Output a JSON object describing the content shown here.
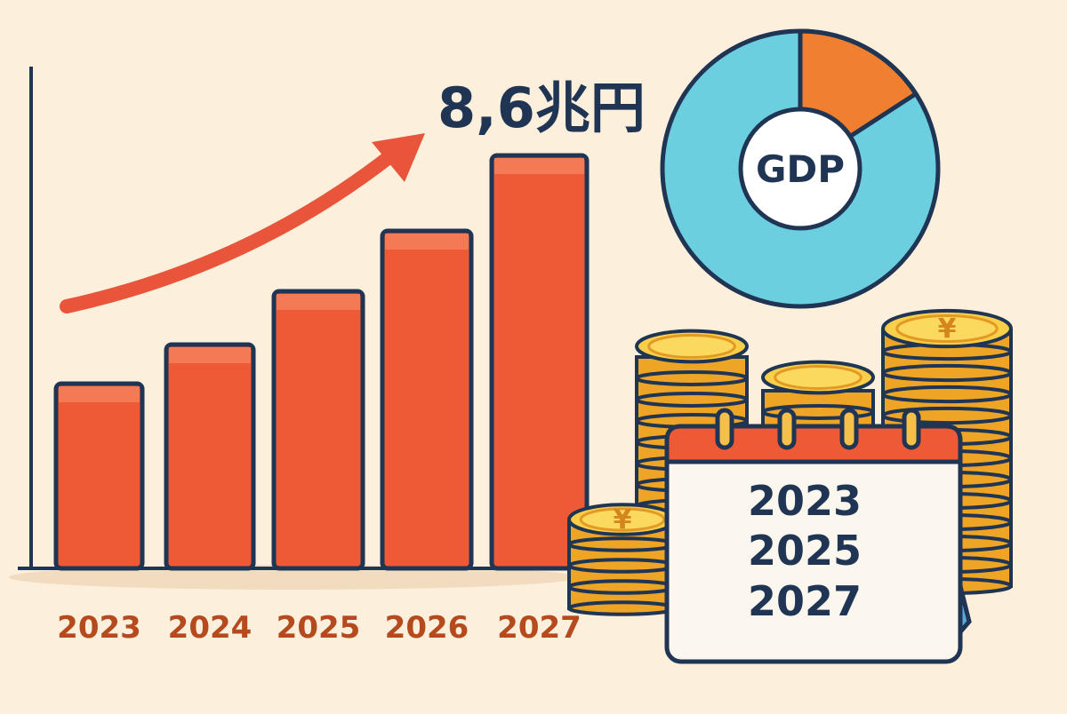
{
  "headline": "8,6兆円",
  "donut_label": "GDP",
  "coin_symbol": "¥",
  "bar_years": [
    "2023",
    "2024",
    "2025",
    "2026",
    "2027"
  ],
  "calendar_years": [
    "2023",
    "2025",
    "2027"
  ]
}
